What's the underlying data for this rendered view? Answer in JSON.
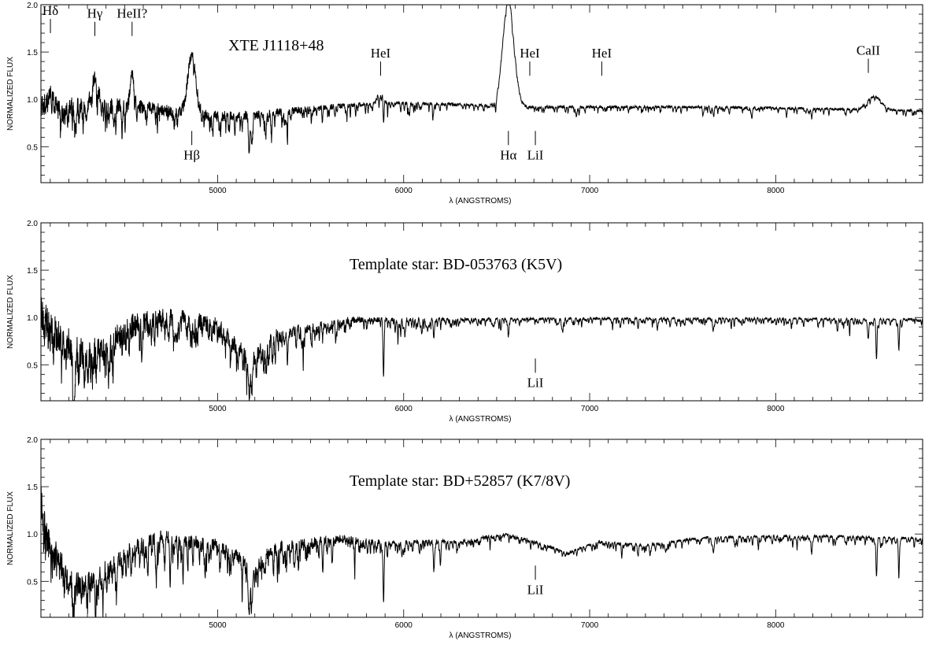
{
  "chart_data": [
    {
      "type": "line",
      "title": "XTE J1118+48",
      "xlabel": "λ (ANGSTROMS)",
      "ylabel": "NORMALIZED FLUX",
      "xlim": [
        4050,
        8790
      ],
      "ylim": [
        0.12,
        2.0
      ],
      "x_ticks": [
        5000,
        6000,
        7000,
        8000
      ],
      "y_ticks": [
        0.5,
        1.0,
        1.5,
        2.0
      ],
      "y_tick_labels": [
        "0.5",
        "1.0",
        "1.5",
        "2.0"
      ],
      "continuum": [
        [
          4050,
          0.95
        ],
        [
          4200,
          0.92
        ],
        [
          4400,
          0.93
        ],
        [
          4600,
          0.92
        ],
        [
          4800,
          0.86
        ],
        [
          5000,
          0.82
        ],
        [
          5200,
          0.83
        ],
        [
          5400,
          0.88
        ],
        [
          5600,
          0.92
        ],
        [
          5800,
          0.95
        ],
        [
          6000,
          0.96
        ],
        [
          6200,
          0.95
        ],
        [
          6400,
          0.94
        ],
        [
          6600,
          0.92
        ],
        [
          7000,
          0.92
        ],
        [
          7500,
          0.92
        ],
        [
          8000,
          0.91
        ],
        [
          8790,
          0.88
        ]
      ],
      "noise": [
        [
          4050,
          0.12
        ],
        [
          4600,
          0.07
        ],
        [
          5200,
          0.05
        ],
        [
          5800,
          0.02
        ],
        [
          6200,
          0.015
        ],
        [
          8790,
          0.012
        ]
      ],
      "emission": [
        {
          "center": 4101,
          "height": 0.12,
          "sigma": 10
        },
        {
          "center": 4340,
          "height": 0.32,
          "sigma": 18
        },
        {
          "center": 4540,
          "height": 0.35,
          "sigma": 10
        },
        {
          "center": 4861,
          "height": 0.62,
          "sigma": 22
        },
        {
          "center": 5876,
          "height": 0.15,
          "sigma": 14
        },
        {
          "center": 6563,
          "height": 1.12,
          "sigma": 30
        },
        {
          "center": 8542,
          "height": 0.12,
          "sigma": 30
        },
        {
          "center": 8498,
          "height": 0.06,
          "sigma": 25
        }
      ],
      "absorption": [
        {
          "center": 5170,
          "depth": 0.3,
          "sigma": 4
        },
        {
          "center": 5183,
          "depth": 0.3,
          "sigma": 4
        },
        {
          "center": 5892,
          "depth": 0.28,
          "sigma": 3
        },
        {
          "center": 6160,
          "depth": 0.1,
          "sigma": 3
        },
        {
          "center": 6496,
          "depth": 0.1,
          "sigma": 3
        },
        {
          "center": 7665,
          "depth": 0.08,
          "sigma": 4
        },
        {
          "center": 8194,
          "depth": 0.1,
          "sigma": 3
        }
      ],
      "lines_per_100A": 6,
      "seed": 11,
      "annotations": [
        {
          "text": "Hδ",
          "x": 4101,
          "y": 1.7,
          "pos": "above"
        },
        {
          "text": "Hγ",
          "x": 4340,
          "y": 1.67,
          "pos": "above"
        },
        {
          "text": "HeII?",
          "x": 4540,
          "y": 1.67,
          "pos": "above"
        },
        {
          "text": "Hβ",
          "x": 4861,
          "y": 0.45,
          "pos": "below"
        },
        {
          "text": "HeI",
          "x": 5876,
          "y": 1.25,
          "pos": "above"
        },
        {
          "text": "Hα",
          "x": 6563,
          "y": 0.45,
          "pos": "below"
        },
        {
          "text": "LiI",
          "x": 6708,
          "y": 0.45,
          "pos": "below"
        },
        {
          "text": "HeI",
          "x": 6678,
          "y": 1.25,
          "pos": "above"
        },
        {
          "text": "HeI",
          "x": 7065,
          "y": 1.25,
          "pos": "above"
        },
        {
          "text": "CaII",
          "x": 8498,
          "y": 1.28,
          "pos": "above"
        }
      ]
    },
    {
      "type": "line",
      "title": "Template star: BD-053763 (K5V)",
      "xlabel": "λ (ANGSTROMS)",
      "ylabel": "NORMALIZED FLUX",
      "xlim": [
        4050,
        8790
      ],
      "ylim": [
        0.12,
        2.0
      ],
      "x_ticks": [
        5000,
        6000,
        7000,
        8000
      ],
      "y_ticks": [
        0.5,
        1.0,
        1.5,
        2.0
      ],
      "y_tick_labels": [
        "0.5",
        "1.0",
        "1.5",
        "2.0"
      ],
      "continuum": [
        [
          4050,
          1.05
        ],
        [
          4150,
          0.78
        ],
        [
          4250,
          0.62
        ],
        [
          4400,
          0.7
        ],
        [
          4550,
          0.92
        ],
        [
          4700,
          1.0
        ],
        [
          4850,
          0.98
        ],
        [
          5000,
          0.9
        ],
        [
          5100,
          0.72
        ],
        [
          5180,
          0.55
        ],
        [
          5300,
          0.8
        ],
        [
          5500,
          0.9
        ],
        [
          5700,
          0.97
        ],
        [
          6000,
          0.98
        ],
        [
          7000,
          0.99
        ],
        [
          8000,
          0.99
        ],
        [
          8790,
          0.98
        ]
      ],
      "noise": [
        [
          4050,
          0.2
        ],
        [
          4300,
          0.18
        ],
        [
          4700,
          0.1
        ],
        [
          5200,
          0.09
        ],
        [
          5600,
          0.04
        ],
        [
          6000,
          0.02
        ],
        [
          6600,
          0.012
        ],
        [
          8790,
          0.008
        ]
      ],
      "emission": [],
      "absorption": [
        {
          "center": 4227,
          "depth": 0.55,
          "sigma": 3
        },
        {
          "center": 5170,
          "depth": 0.35,
          "sigma": 4
        },
        {
          "center": 5183,
          "depth": 0.35,
          "sigma": 4
        },
        {
          "center": 5892,
          "depth": 0.58,
          "sigma": 3
        },
        {
          "center": 6162,
          "depth": 0.2,
          "sigma": 3
        },
        {
          "center": 6563,
          "depth": 0.15,
          "sigma": 3
        },
        {
          "center": 7665,
          "depth": 0.08,
          "sigma": 4
        },
        {
          "center": 8498,
          "depth": 0.2,
          "sigma": 3
        },
        {
          "center": 8542,
          "depth": 0.42,
          "sigma": 3
        },
        {
          "center": 8662,
          "depth": 0.33,
          "sigma": 3
        }
      ],
      "lines_per_100A": 12,
      "seed": 23,
      "annotations": [
        {
          "text": "LiI",
          "x": 6708,
          "y": 0.35,
          "pos": "below"
        }
      ]
    },
    {
      "type": "line",
      "title": "Template star: BD+52857 (K7/8V)",
      "xlabel": "λ (ANGSTROMS)",
      "ylabel": "NORMALIZED FLUX",
      "xlim": [
        4050,
        8790
      ],
      "ylim": [
        0.12,
        2.0
      ],
      "x_ticks": [
        5000,
        6000,
        7000,
        8000
      ],
      "y_ticks": [
        0.5,
        1.0,
        1.5,
        2.0
      ],
      "y_tick_labels": [
        "0.5",
        "1.0",
        "1.5",
        "2.0"
      ],
      "continuum": [
        [
          4050,
          1.35
        ],
        [
          4100,
          0.85
        ],
        [
          4200,
          0.5
        ],
        [
          4280,
          0.45
        ],
        [
          4400,
          0.62
        ],
        [
          4550,
          0.85
        ],
        [
          4700,
          0.98
        ],
        [
          4850,
          0.92
        ],
        [
          5000,
          0.88
        ],
        [
          5100,
          0.78
        ],
        [
          5180,
          0.62
        ],
        [
          5300,
          0.85
        ],
        [
          5500,
          0.92
        ],
        [
          5700,
          0.95
        ],
        [
          5900,
          0.9
        ],
        [
          6100,
          0.92
        ],
        [
          6300,
          0.92
        ],
        [
          6550,
          1.0
        ],
        [
          6700,
          0.92
        ],
        [
          6880,
          0.8
        ],
        [
          7050,
          0.92
        ],
        [
          7300,
          0.88
        ],
        [
          7600,
          0.96
        ],
        [
          8000,
          0.98
        ],
        [
          8500,
          0.97
        ],
        [
          8790,
          0.95
        ]
      ],
      "noise": [
        [
          4050,
          0.22
        ],
        [
          4300,
          0.12
        ],
        [
          4700,
          0.07
        ],
        [
          5200,
          0.07
        ],
        [
          5600,
          0.05
        ],
        [
          6000,
          0.025
        ],
        [
          6600,
          0.015
        ],
        [
          8790,
          0.01
        ]
      ],
      "emission": [],
      "absorption": [
        {
          "center": 4227,
          "depth": 0.35,
          "sigma": 3
        },
        {
          "center": 5170,
          "depth": 0.3,
          "sigma": 4
        },
        {
          "center": 5183,
          "depth": 0.3,
          "sigma": 4
        },
        {
          "center": 5892,
          "depth": 0.62,
          "sigma": 3
        },
        {
          "center": 6162,
          "depth": 0.3,
          "sigma": 3
        },
        {
          "center": 7665,
          "depth": 0.15,
          "sigma": 4
        },
        {
          "center": 8194,
          "depth": 0.18,
          "sigma": 3
        },
        {
          "center": 8542,
          "depth": 0.4,
          "sigma": 3
        },
        {
          "center": 8662,
          "depth": 0.32,
          "sigma": 3
        }
      ],
      "lines_per_100A": 12,
      "seed": 37,
      "annotations": [
        {
          "text": "LiI",
          "x": 6708,
          "y": 0.45,
          "pos": "below"
        }
      ]
    }
  ]
}
